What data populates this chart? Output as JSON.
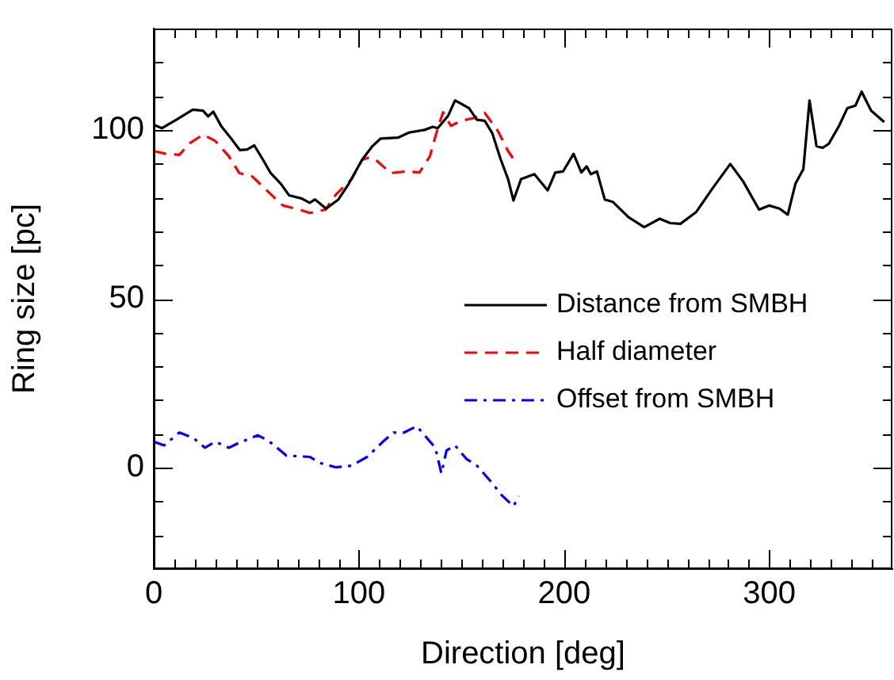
{
  "chart_data": {
    "type": "line",
    "xlabel": "Direction [deg]",
    "ylabel": "Ring size [pc]",
    "xlim": [
      0,
      360
    ],
    "ylim": [
      -30,
      130
    ],
    "xticks": [
      0,
      {
        "value": 10,
        "label": null
      },
      {
        "value": 20,
        "label": null
      },
      {
        "value": 30,
        "label": null
      },
      {
        "value": 40,
        "label": null
      },
      {
        "value": 50,
        "label": null
      },
      {
        "value": 60,
        "label": null
      },
      {
        "value": 70,
        "label": null
      },
      {
        "value": 80,
        "label": null
      },
      {
        "value": 90,
        "label": null
      },
      100,
      {
        "value": 110,
        "label": null
      },
      {
        "value": 120,
        "label": null
      },
      {
        "value": 130,
        "label": null
      },
      {
        "value": 140,
        "label": null
      },
      {
        "value": 150,
        "label": null
      },
      {
        "value": 160,
        "label": null
      },
      {
        "value": 170,
        "label": null
      },
      {
        "value": 180,
        "label": null
      },
      {
        "value": 190,
        "label": null
      },
      200,
      {
        "value": 210,
        "label": null
      },
      {
        "value": 220,
        "label": null
      },
      {
        "value": 230,
        "label": null
      },
      {
        "value": 240,
        "label": null
      },
      {
        "value": 250,
        "label": null
      },
      {
        "value": 260,
        "label": null
      },
      {
        "value": 270,
        "label": null
      },
      {
        "value": 280,
        "label": null
      },
      {
        "value": 290,
        "label": null
      },
      300,
      {
        "value": 310,
        "label": null
      },
      {
        "value": 320,
        "label": null
      },
      {
        "value": 330,
        "label": null
      },
      {
        "value": 340,
        "label": null
      },
      {
        "value": 350,
        "label": null
      }
    ],
    "yticks": [
      {
        "value": -20,
        "label": null
      },
      {
        "value": -10,
        "label": null
      },
      0,
      {
        "value": 10,
        "label": null
      },
      {
        "value": 20,
        "label": null
      },
      {
        "value": 30,
        "label": null
      },
      {
        "value": 40,
        "label": null
      },
      50,
      {
        "value": 60,
        "label": null
      },
      {
        "value": 70,
        "label": null
      },
      {
        "value": 80,
        "label": null
      },
      {
        "value": 90,
        "label": null
      },
      100,
      {
        "value": 110,
        "label": null
      },
      {
        "value": 120,
        "label": null
      }
    ],
    "grid": false,
    "legend": "right",
    "marker": "none",
    "series": [
      {
        "name": "Distance from SMBH",
        "color": "#000000",
        "line_style": "solid",
        "x": [
          0,
          4,
          11,
          19,
          24,
          26.5,
          29,
          33,
          37,
          42,
          45.5,
          49,
          53,
          57,
          62,
          66,
          72,
          76,
          78.6,
          84,
          90,
          95,
          101.5,
          106.6,
          110.5,
          119,
          124.4,
          132,
          136,
          138.4,
          143.5,
          146.8,
          150,
          153.7,
          157.5,
          161.3,
          165,
          169,
          172.7,
          175.3,
          179,
          185.5,
          192,
          195.7,
          199.5,
          204.6,
          208.4,
          211,
          213,
          216,
          219.8,
          223.7,
          231.3,
          239,
          246.6,
          251.7,
          256.7,
          264.4,
          272,
          281,
          287.3,
          295,
          300,
          305,
          309,
          312.7,
          316.6,
          319.6,
          323,
          326,
          329,
          334,
          338,
          342,
          345,
          349.6,
          356
        ],
        "values": [
          101.5,
          100.5,
          103,
          106,
          105.7,
          104,
          105.4,
          101,
          98,
          94,
          94.2,
          95.4,
          91.4,
          87.2,
          84,
          80.6,
          79.7,
          78.4,
          79.4,
          76.7,
          79.4,
          84,
          91.1,
          95.2,
          97.4,
          97.7,
          99.2,
          100,
          100.9,
          100.5,
          104.2,
          108.7,
          107.7,
          106.4,
          103,
          102.7,
          99,
          91.4,
          85.4,
          79.1,
          85.4,
          86.9,
          82.1,
          87.4,
          87.7,
          92.9,
          87.4,
          89.2,
          86.9,
          87.7,
          79.4,
          78.7,
          74.2,
          71.2,
          73.7,
          72.4,
          72.2,
          75.7,
          82.4,
          89.9,
          84.7,
          76.4,
          77.6,
          76.7,
          74.9,
          84,
          88.4,
          108.7,
          95.2,
          94.7,
          95.9,
          101.2,
          106.4,
          107.2,
          111.3,
          105.7,
          102.3
        ]
      },
      {
        "name": "Half diameter",
        "color": "#ff0000",
        "line_style": "dashed",
        "x": [
          0,
          6,
          12.5,
          17.5,
          24,
          30,
          36.6,
          41.7,
          48,
          55.7,
          63,
          71,
          76,
          83.7,
          88.8,
          96.4,
          101.5,
          105.3,
          109,
          115.5,
          123,
          129.5,
          134.6,
          138.4,
          141,
          144.8,
          150,
          156,
          161.3,
          167.7,
          172.7,
          175.3
        ],
        "values": [
          93.7,
          92.9,
          92.6,
          96,
          98.6,
          96.7,
          92.2,
          87.2,
          86.2,
          81.7,
          77.6,
          76.4,
          75.4,
          76.4,
          80.9,
          85.4,
          91.1,
          91.9,
          90.7,
          87.2,
          87.7,
          87.4,
          92.2,
          100.5,
          105.2,
          101.2,
          102.7,
          103.5,
          105,
          99.7,
          93.7,
          91.4
        ]
      },
      {
        "name": "Offset from SMBH",
        "color": "#0000ff",
        "line_style": "dashdot",
        "x": [
          0,
          5,
          12.5,
          19,
          25,
          30,
          36.6,
          41.7,
          50.6,
          55.7,
          64.6,
          76,
          81,
          88.8,
          96.4,
          104,
          111.7,
          116.8,
          122,
          128.2,
          132,
          137.2,
          140.2,
          142.7,
          146.8,
          152.4,
          157.5,
          164,
          170,
          175.3,
          177.9
        ],
        "values": [
          7.7,
          6.6,
          10.4,
          8.9,
          5.9,
          7.7,
          5.9,
          7.4,
          9.6,
          8.1,
          3.6,
          3.2,
          1.4,
          0.1,
          0.6,
          3.2,
          7.7,
          10.4,
          10.4,
          12.3,
          9.6,
          5.9,
          -1.7,
          5.1,
          6.6,
          2.6,
          0.6,
          -3.9,
          -8.4,
          -11.4,
          -8.4
        ]
      }
    ]
  }
}
